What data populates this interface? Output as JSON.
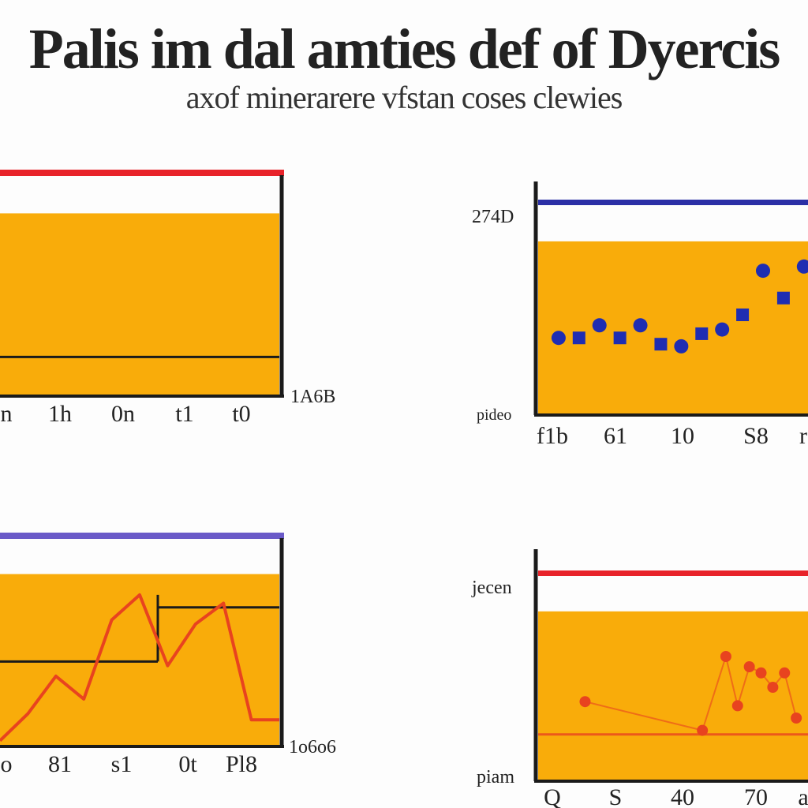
{
  "title": "Palis im dal amties def of Dyercis",
  "subtitle": "axof minerarere vfstan coses clewies",
  "colors": {
    "fill": "#F9AC0A",
    "axis": "#1a1a1a",
    "dot": "#1F2DB2",
    "line": "#E8431F",
    "red_band": "#E8232A",
    "navy_band": "#2B2FA6",
    "purple_band": "#6A5AC8"
  },
  "chart_data": [
    {
      "type": "bar",
      "band_color": "red",
      "side_label": "1A6B",
      "ylim": [
        0,
        100
      ],
      "fill_value": 82,
      "ref_value": 17,
      "x_ticks": [
        "n",
        "1h",
        "0n",
        "t1",
        "t0"
      ]
    },
    {
      "type": "scatter",
      "band_color": "navy",
      "side_label_top": "274D",
      "side_label_bottom": "pideo",
      "ylim": [
        0,
        100
      ],
      "fill_value": 82,
      "x": [
        1,
        2,
        3,
        4,
        5,
        6,
        7,
        8,
        9,
        10,
        11,
        12,
        13
      ],
      "y": [
        36,
        36,
        42,
        36,
        42,
        33,
        32,
        38,
        40,
        47,
        68,
        55,
        70
      ],
      "x_ticks": [
        "f1b",
        "61",
        "10",
        "S8",
        "r"
      ]
    },
    {
      "type": "line",
      "band_color": "purple",
      "side_label": "1o6o6",
      "ylim": [
        0,
        100
      ],
      "fill_value": 82,
      "ref_values": [
        66,
        40
      ],
      "x": [
        0,
        1,
        2,
        3,
        4,
        5,
        6,
        7,
        8,
        9,
        10
      ],
      "y": [
        2,
        15,
        33,
        22,
        60,
        72,
        38,
        58,
        68,
        12,
        12
      ],
      "x_ticks": [
        "o",
        "81",
        "s1",
        "0t",
        "Pl8"
      ]
    },
    {
      "type": "scatter",
      "band_color": "red",
      "side_label_top": "jecen",
      "side_label_bottom": "piam",
      "ylim": [
        0,
        100
      ],
      "fill_value": 82,
      "ref_value": 22,
      "x": [
        2.0,
        7.0,
        8.0,
        8.5,
        9.0,
        9.5,
        10.0,
        10.5,
        11.0
      ],
      "y": [
        38,
        24,
        60,
        36,
        55,
        52,
        45,
        52,
        30
      ],
      "x_ticks": [
        "Q",
        "S",
        "40",
        "70",
        "a"
      ]
    }
  ]
}
